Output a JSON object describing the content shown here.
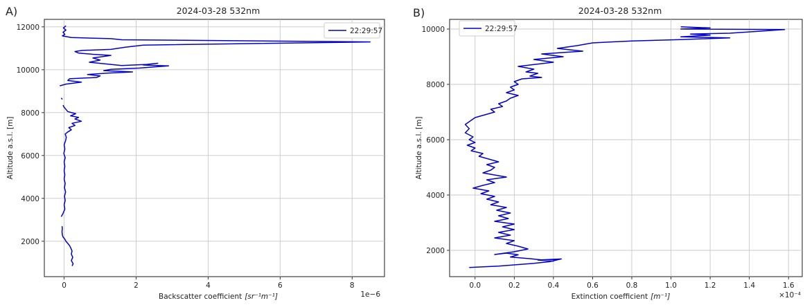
{
  "chart_data": [
    {
      "type": "line",
      "panel_label": "A)",
      "title": "2024-03-28 532nm",
      "xlabel": "Backscatter coefficient",
      "xlabel_unit": "[sr⁻¹m⁻¹]",
      "ylabel": "Altitude a.s.l. [m]",
      "offset_text": "1e−6",
      "xlim": [
        -0.55,
        8.9
      ],
      "ylim": [
        350,
        12350
      ],
      "xticks": [
        0,
        2,
        4,
        6,
        8
      ],
      "xtick_labels": [
        "0",
        "2",
        "4",
        "6",
        "8"
      ],
      "yticks": [
        2000,
        4000,
        6000,
        8000,
        10000,
        12000
      ],
      "ytick_labels": [
        "2000",
        "4000",
        "6000",
        "8000",
        "10000",
        "12000"
      ],
      "grid": true,
      "legend_position": "top-right",
      "series": [
        {
          "name": "22:29:57",
          "color": "#0000cc",
          "segments": [
            [
              [
                0.22,
                850
              ],
              [
                0.25,
                950
              ],
              [
                0.2,
                1100
              ],
              [
                0.24,
                1250
              ],
              [
                0.2,
                1400
              ],
              [
                0.22,
                1550
              ],
              [
                0.18,
                1700
              ],
              [
                0.15,
                1800
              ],
              [
                0.1,
                1900
              ],
              [
                0.05,
                2000
              ],
              [
                0.02,
                2100
              ],
              [
                -0.03,
                2200
              ],
              [
                -0.05,
                2300
              ],
              [
                -0.06,
                2450
              ],
              [
                -0.05,
                2600
              ],
              [
                -0.06,
                2700
              ]
            ],
            [
              [
                -0.08,
                3150
              ],
              [
                -0.03,
                3300
              ],
              [
                0.02,
                3500
              ],
              [
                0.0,
                3700
              ],
              [
                0.03,
                3900
              ],
              [
                0.01,
                4100
              ],
              [
                0.04,
                4300
              ],
              [
                0.01,
                4500
              ],
              [
                0.03,
                4700
              ],
              [
                0.0,
                4900
              ],
              [
                0.02,
                5100
              ],
              [
                0.0,
                5300
              ],
              [
                0.02,
                5500
              ],
              [
                0.0,
                5700
              ],
              [
                0.03,
                5900
              ],
              [
                -0.01,
                6100
              ],
              [
                0.02,
                6300
              ],
              [
                0.0,
                6500
              ],
              [
                0.04,
                6700
              ],
              [
                0.06,
                6850
              ],
              [
                0.03,
                7000
              ],
              [
                0.1,
                7100
              ],
              [
                0.2,
                7200
              ],
              [
                0.13,
                7300
              ],
              [
                0.3,
                7400
              ],
              [
                0.22,
                7500
              ],
              [
                0.48,
                7600
              ],
              [
                0.3,
                7700
              ],
              [
                0.4,
                7780
              ],
              [
                0.18,
                7850
              ],
              [
                0.32,
                7950
              ],
              [
                0.1,
                8050
              ],
              [
                0.05,
                8150
              ],
              [
                0.0,
                8250
              ],
              [
                -0.03,
                8350
              ]
            ],
            [
              [
                -0.05,
                8620
              ],
              [
                -0.08,
                8680
              ]
            ],
            [
              [
                -0.12,
                9250
              ],
              [
                0.05,
                9330
              ],
              [
                0.48,
                9420
              ],
              [
                0.1,
                9500
              ],
              [
                0.15,
                9580
              ],
              [
                0.9,
                9640
              ],
              [
                1.0,
                9710
              ],
              [
                0.65,
                9780
              ],
              [
                1.2,
                9840
              ],
              [
                1.9,
                9900
              ],
              [
                1.1,
                9960
              ],
              [
                1.3,
                10020
              ],
              [
                2.1,
                10080
              ],
              [
                2.5,
                10130
              ],
              [
                2.9,
                10180
              ],
              [
                2.2,
                10220
              ],
              [
                2.4,
                10270
              ],
              [
                2.6,
                10300
              ],
              [
                2.3,
                10250
              ],
              [
                1.6,
                10200
              ],
              [
                0.7,
                10350
              ],
              [
                1.0,
                10450
              ],
              [
                0.8,
                10550
              ],
              [
                1.1,
                10620
              ],
              [
                1.3,
                10670
              ],
              [
                0.8,
                10720
              ],
              [
                0.4,
                10780
              ],
              [
                0.3,
                10850
              ],
              [
                0.5,
                10900
              ],
              [
                1.3,
                10950
              ],
              [
                1.7,
                11050
              ],
              [
                2.2,
                11150
              ],
              [
                8.5,
                11300
              ],
              [
                1.6,
                11400
              ],
              [
                1.3,
                11450
              ],
              [
                0.2,
                11500
              ],
              [
                -0.05,
                11580
              ],
              [
                0.02,
                11650
              ],
              [
                -0.03,
                11750
              ],
              [
                0.05,
                11850
              ],
              [
                -0.02,
                11950
              ],
              [
                0.05,
                12050
              ]
            ]
          ]
        }
      ]
    },
    {
      "type": "line",
      "panel_label": "B)",
      "title": "2024-03-28 532nm",
      "xlabel": "Extinction coefficient",
      "xlabel_unit": "[m⁻¹]",
      "ylabel": "Altitude a.s.l. [m]",
      "offset_text": "×10⁻⁴",
      "xlim": [
        -0.13,
        1.67
      ],
      "ylim": [
        1050,
        10350
      ],
      "xticks": [
        0.0,
        0.2,
        0.4,
        0.6,
        0.8,
        1.0,
        1.2,
        1.4,
        1.6
      ],
      "xtick_labels": [
        "0.0",
        "0.2",
        "0.4",
        "0.6",
        "0.8",
        "1.0",
        "1.2",
        "1.4",
        "1.6"
      ],
      "yticks": [
        2000,
        4000,
        6000,
        8000,
        10000
      ],
      "ytick_labels": [
        "2000",
        "4000",
        "6000",
        "8000",
        "10000"
      ],
      "grid": true,
      "legend_position": "top-left",
      "series": [
        {
          "name": "22:29:57",
          "color": "#0000cc",
          "segments": [
            [
              [
                -0.03,
                1380
              ],
              [
                0.12,
                1430
              ],
              [
                0.3,
                1530
              ],
              [
                0.38,
                1590
              ],
              [
                0.44,
                1690
              ],
              [
                0.32,
                1650
              ],
              [
                0.4,
                1610
              ],
              [
                0.28,
                1700
              ],
              [
                0.18,
                1760
              ],
              [
                0.22,
                1840
              ],
              [
                0.16,
                1900
              ],
              [
                0.1,
                1850
              ],
              [
                0.2,
                1950
              ],
              [
                0.27,
                2050
              ],
              [
                0.22,
                2150
              ],
              [
                0.16,
                2250
              ],
              [
                0.2,
                2350
              ],
              [
                0.1,
                2450
              ],
              [
                0.18,
                2550
              ],
              [
                0.12,
                2650
              ],
              [
                0.2,
                2750
              ],
              [
                0.14,
                2850
              ],
              [
                0.2,
                2950
              ],
              [
                0.1,
                3050
              ],
              [
                0.17,
                3150
              ],
              [
                0.12,
                3250
              ],
              [
                0.18,
                3350
              ],
              [
                0.11,
                3450
              ],
              [
                0.16,
                3550
              ],
              [
                0.08,
                3650
              ],
              [
                0.12,
                3750
              ],
              [
                0.06,
                3850
              ],
              [
                0.1,
                3950
              ],
              [
                0.03,
                4050
              ],
              [
                0.07,
                4150
              ],
              [
                -0.01,
                4250
              ],
              [
                0.04,
                4350
              ],
              [
                0.1,
                4450
              ],
              [
                0.06,
                4550
              ],
              [
                0.16,
                4650
              ],
              [
                0.12,
                4700
              ],
              [
                0.04,
                4800
              ],
              [
                0.08,
                4900
              ],
              [
                0.1,
                5000
              ],
              [
                0.06,
                5100
              ],
              [
                0.12,
                5200
              ],
              [
                0.07,
                5300
              ],
              [
                0.02,
                5400
              ],
              [
                0.04,
                5500
              ],
              [
                -0.02,
                5600
              ],
              [
                0.0,
                5700
              ],
              [
                -0.04,
                5800
              ],
              [
                0.0,
                5900
              ],
              [
                -0.03,
                6000
              ],
              [
                -0.01,
                6100
              ],
              [
                -0.05,
                6250
              ],
              [
                -0.03,
                6400
              ],
              [
                -0.05,
                6550
              ],
              [
                -0.02,
                6700
              ],
              [
                0.0,
                6800
              ],
              [
                0.05,
                6900
              ],
              [
                0.1,
                7000
              ],
              [
                0.08,
                7100
              ],
              [
                0.14,
                7200
              ],
              [
                0.12,
                7300
              ],
              [
                0.16,
                7400
              ],
              [
                0.18,
                7500
              ],
              [
                0.22,
                7600
              ],
              [
                0.16,
                7700
              ],
              [
                0.2,
                7800
              ],
              [
                0.18,
                7900
              ],
              [
                0.22,
                8000
              ],
              [
                0.2,
                8100
              ],
              [
                0.24,
                8200
              ],
              [
                0.34,
                8250
              ],
              [
                0.28,
                8300
              ],
              [
                0.32,
                8400
              ],
              [
                0.26,
                8450
              ],
              [
                0.3,
                8550
              ],
              [
                0.22,
                8650
              ],
              [
                0.28,
                8700
              ],
              [
                0.4,
                8800
              ],
              [
                0.3,
                8900
              ],
              [
                0.45,
                9000
              ],
              [
                0.34,
                9100
              ],
              [
                0.55,
                9200
              ],
              [
                0.42,
                9300
              ],
              [
                0.52,
                9400
              ],
              [
                0.6,
                9500
              ],
              [
                0.8,
                9570
              ],
              [
                1.05,
                9620
              ],
              [
                1.3,
                9680
              ],
              [
                1.05,
                9720
              ],
              [
                1.2,
                9780
              ],
              [
                1.1,
                9820
              ],
              [
                1.3,
                9850
              ],
              [
                1.58,
                9980
              ],
              [
                1.05,
                10000
              ],
              [
                1.2,
                10040
              ],
              [
                1.05,
                10080
              ]
            ]
          ]
        }
      ]
    }
  ]
}
